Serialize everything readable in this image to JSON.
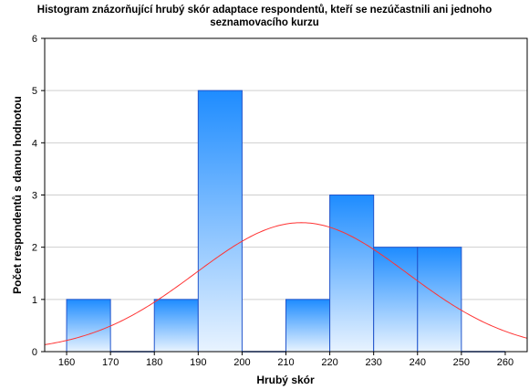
{
  "chart_data": {
    "type": "bar",
    "title_lines": [
      "Histogram znázorňující hrubý skór adaptace respondentů, kteří se nezúčastnili ani jednoho",
      "seznamovacího kurzu"
    ],
    "xlabel": "Hrubý skór",
    "ylabel": "Počet respondentů s danou hodnotou",
    "bins": [
      {
        "from": 160,
        "to": 170,
        "count": 1
      },
      {
        "from": 170,
        "to": 180,
        "count": 0
      },
      {
        "from": 180,
        "to": 190,
        "count": 1
      },
      {
        "from": 190,
        "to": 200,
        "count": 5
      },
      {
        "from": 200,
        "to": 210,
        "count": 0
      },
      {
        "from": 210,
        "to": 220,
        "count": 1
      },
      {
        "from": 220,
        "to": 230,
        "count": 3
      },
      {
        "from": 230,
        "to": 240,
        "count": 2
      },
      {
        "from": 240,
        "to": 250,
        "count": 2
      },
      {
        "from": 250,
        "to": 260,
        "count": 0
      }
    ],
    "xlim": [
      155,
      265
    ],
    "ylim": [
      0,
      6
    ],
    "xticks": [
      160,
      170,
      180,
      190,
      200,
      210,
      220,
      230,
      240,
      250,
      260
    ],
    "yticks": [
      0,
      1,
      2,
      3,
      4,
      5,
      6
    ],
    "normal_curve": {
      "mean": 213.5,
      "sd": 24.2,
      "peak": 2.47,
      "color": "#ff3333"
    },
    "bar_gradient": {
      "top": "#1e8cff",
      "bottom": "#e8f3ff"
    },
    "bar_stroke": "#2255cc",
    "grid": true
  }
}
